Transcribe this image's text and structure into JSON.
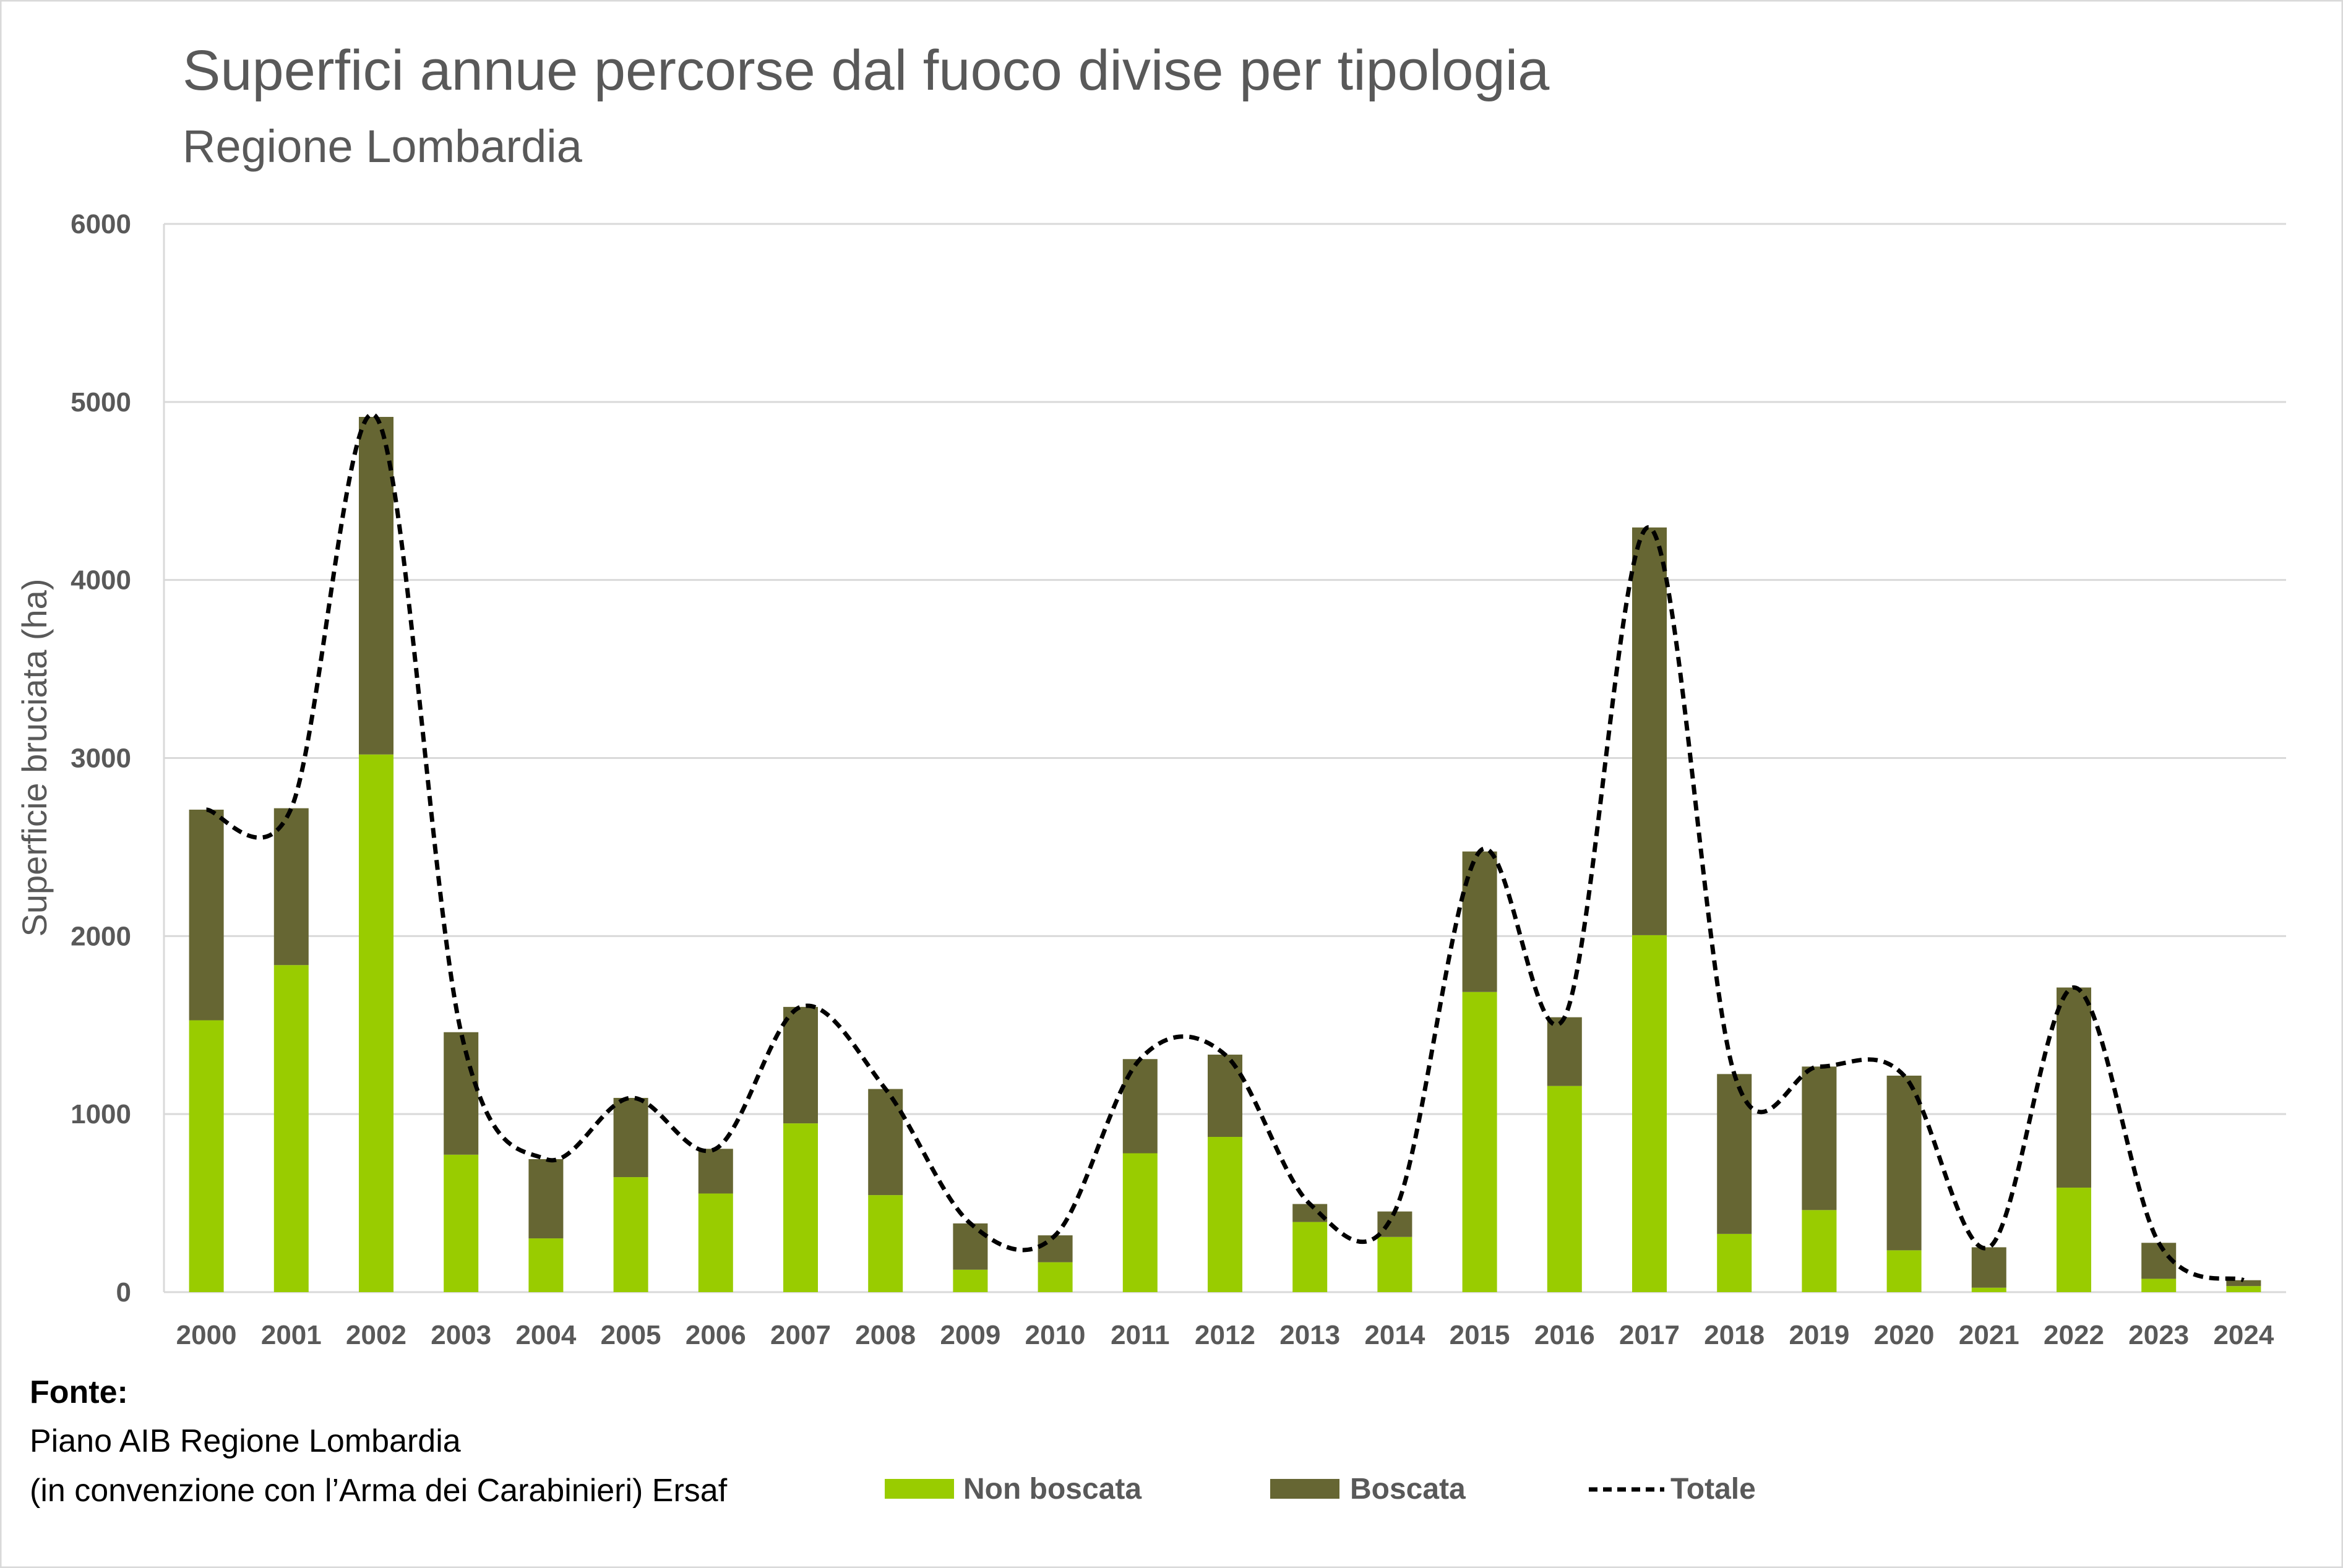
{
  "chart_data": {
    "type": "bar",
    "stacked": true,
    "title": "Superfici annue percorse dal fuoco divise per tipologia",
    "subtitle": "Regione Lombardia",
    "xlabel": "",
    "ylabel": "Superficie bruciata (ha)",
    "ylim": [
      0,
      6000
    ],
    "yticks": [
      "0",
      "1000",
      "2000",
      "3000",
      "4000",
      "5000",
      "6000"
    ],
    "grid": true,
    "legend_position": "bottom-right",
    "categories": [
      "2000",
      "2001",
      "2002",
      "2003",
      "2004",
      "2005",
      "2006",
      "2007",
      "2008",
      "2009",
      "2010",
      "2011",
      "2012",
      "2013",
      "2014",
      "2015",
      "2016",
      "2017",
      "2018",
      "2019",
      "2020",
      "2021",
      "2022",
      "2023",
      "2024"
    ],
    "series": [
      {
        "name": "Non boscata",
        "type": "bar",
        "color": "#99CC00",
        "values": [
          1527,
          1837,
          3020,
          772,
          302,
          646,
          554,
          948,
          545,
          126,
          168,
          780,
          872,
          394,
          310,
          1686,
          1158,
          2005,
          327,
          461,
          235,
          25,
          587,
          75,
          34
        ]
      },
      {
        "name": "Boscata",
        "type": "bar",
        "color": "#666633",
        "values": [
          1183,
          881,
          1896,
          688,
          445,
          445,
          251,
          654,
          596,
          260,
          151,
          529,
          462,
          101,
          143,
          789,
          386,
          2290,
          898,
          806,
          981,
          227,
          1124,
          202,
          33
        ]
      },
      {
        "name": "Totale",
        "type": "line",
        "style": "dashed",
        "color": "#000000",
        "values": [
          2710,
          2718,
          4916,
          1460,
          747,
          1091,
          805,
          1602,
          1141,
          386,
          319,
          1309,
          1334,
          495,
          453,
          2475,
          1544,
          4295,
          1225,
          1267,
          1216,
          252,
          1711,
          277,
          67
        ]
      }
    ]
  },
  "source": {
    "heading": "Fonte:",
    "line1": "Piano AIB Regione Lombardia",
    "line2": "(in convenzione con l’Arma dei Carabinieri) Ersaf"
  }
}
